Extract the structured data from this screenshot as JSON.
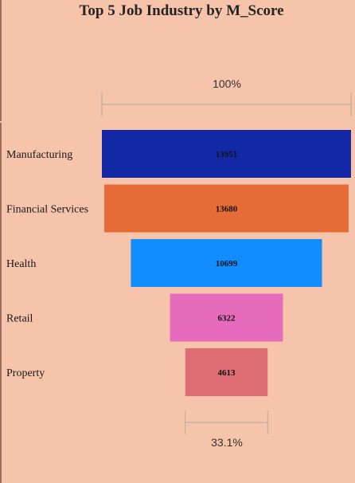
{
  "chart_data": {
    "type": "funnel",
    "title": "Top 5 Job Industry by M_Score",
    "categories": [
      "Manufacturing",
      "Financial Services",
      "Health",
      "Retail",
      "Property"
    ],
    "values": [
      13951,
      13680,
      10699,
      6322,
      4613
    ],
    "colors": [
      "#1228a5",
      "#e66c37",
      "#118dff",
      "#e66bbd",
      "#df6d75"
    ],
    "top_percent_label": "100%",
    "bottom_percent_label": "33.1%"
  }
}
